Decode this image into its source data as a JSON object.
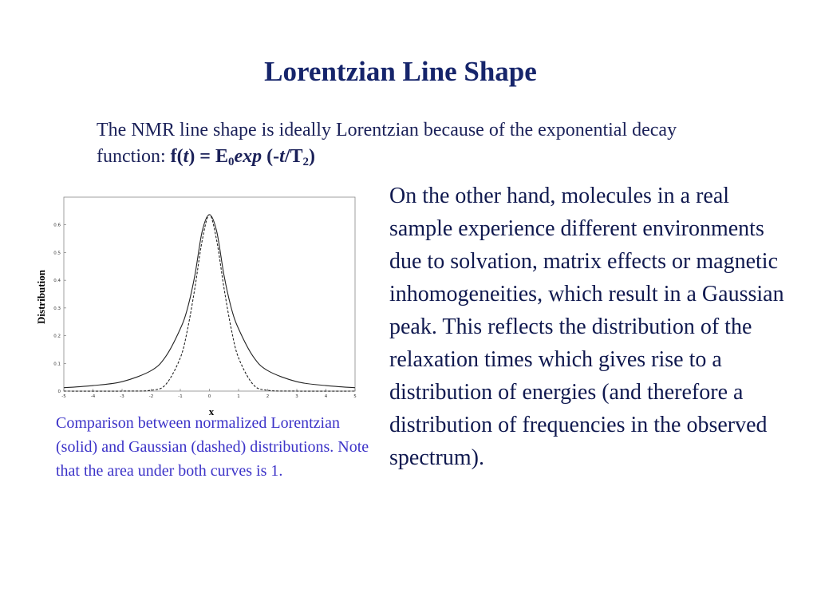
{
  "title": "Lorentzian Line Shape",
  "intro": {
    "text": "The NMR line shape is ideally Lorentzian because of the exponential decay function: ",
    "formula": {
      "f": "f(",
      "t": "t",
      "eq": ") = E",
      "sub0": "0",
      "exp": "exp",
      "open": " (-",
      "t2": "t",
      "slash": "/T",
      "sub2": "2",
      "close": ")"
    }
  },
  "body_text": "On the other hand, molecules in a real sample experience different environments due to solvation, matrix effects or magnetic inhomogeneities, which result in a Gaussian peak. This reflects the distribution of the relaxation times which gives rise to a distribution of energies (and therefore a distribution of frequencies in the observed spectrum).",
  "caption": "Comparison between normalized Lorentzian (solid) and Gaussian (dashed) distributions. Note that the area under both curves is 1.",
  "chart_data": {
    "type": "line",
    "xlabel": "x",
    "ylabel": "Distribution",
    "xlim": [
      -5,
      5
    ],
    "ylim": [
      0,
      0.7
    ],
    "x_ticks": [
      "-5",
      "-4",
      "-3",
      "-2",
      "-1",
      "0",
      "1",
      "2",
      "3",
      "4",
      "5"
    ],
    "y_ticks": [
      "0",
      "0.1",
      "0.2",
      "0.3",
      "0.4",
      "0.5",
      "0.6"
    ],
    "grid": false,
    "series": [
      {
        "style": "solid",
        "x": [
          -5,
          -4,
          -3,
          -2,
          -1.5,
          -1,
          -0.75,
          -0.5,
          -0.25,
          0,
          0.25,
          0.5,
          0.75,
          1,
          1.5,
          2,
          3,
          4,
          5
        ],
        "y": [
          0.012,
          0.02,
          0.034,
          0.074,
          0.125,
          0.225,
          0.3,
          0.418,
          0.576,
          0.637,
          0.576,
          0.418,
          0.3,
          0.225,
          0.125,
          0.074,
          0.034,
          0.02,
          0.012
        ]
      },
      {
        "style": "dashed",
        "x": [
          -5,
          -3,
          -2,
          -1.5,
          -1,
          -0.75,
          -0.5,
          -0.25,
          0,
          0.25,
          0.5,
          0.75,
          1,
          1.5,
          2,
          3,
          5
        ],
        "y": [
          0.0,
          0.0,
          0.003,
          0.024,
          0.12,
          0.224,
          0.372,
          0.543,
          0.637,
          0.543,
          0.372,
          0.224,
          0.12,
          0.024,
          0.003,
          0.0,
          0.0
        ]
      }
    ]
  }
}
